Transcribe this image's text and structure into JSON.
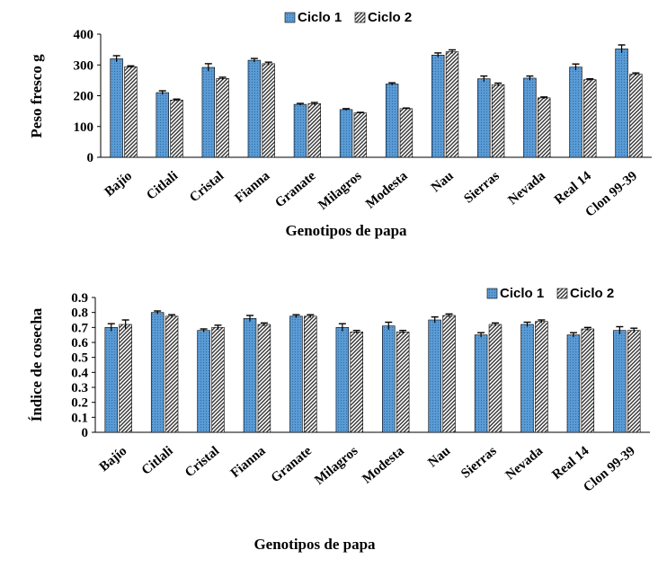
{
  "chart_data": [
    {
      "type": "bar",
      "categories": [
        "Bajío",
        "Citlali",
        "Cristal",
        "Fianna",
        "Granate",
        "Milagros",
        "Modesta",
        "Nau",
        "Sierras",
        "Nevada",
        "Real 14",
        "Clon 99-39"
      ],
      "series": [
        {
          "name": "Ciclo 1",
          "color": "#5b9bd5",
          "pattern": "dots",
          "values": [
            320,
            210,
            292,
            315,
            172,
            155,
            238,
            332,
            255,
            257,
            293,
            352
          ],
          "errors": [
            10,
            6,
            12,
            6,
            3,
            3,
            4,
            7,
            9,
            7,
            10,
            13
          ]
        },
        {
          "name": "Ciclo 2",
          "color": "#ffffff",
          "pattern": "diagonal",
          "values": [
            294,
            186,
            256,
            304,
            174,
            144,
            158,
            343,
            236,
            193,
            252,
            270
          ],
          "errors": [
            3,
            3,
            4,
            5,
            4,
            2,
            2,
            6,
            5,
            3,
            3,
            4
          ]
        }
      ],
      "title": "",
      "xlabel": "Genotipos de papa",
      "ylabel": "Peso fresco g",
      "ylim": [
        0,
        400
      ],
      "yticks": [
        "0",
        "100",
        "200",
        "300",
        "400"
      ],
      "legend": "top-center",
      "grid": false
    },
    {
      "type": "bar",
      "categories": [
        "Bajío",
        "Citlali",
        "Cristal",
        "Fianna",
        "Granate",
        "Milagros",
        "Modesta",
        "Nau",
        "Sierras",
        "Nevada",
        "Real 14",
        "Clon 99-39"
      ],
      "series": [
        {
          "name": "Ciclo 1",
          "color": "#5b9bd5",
          "pattern": "dots",
          "values": [
            0.7,
            0.8,
            0.68,
            0.76,
            0.775,
            0.7,
            0.71,
            0.75,
            0.65,
            0.72,
            0.65,
            0.68
          ],
          "errors": [
            0.025,
            0.01,
            0.01,
            0.02,
            0.01,
            0.025,
            0.025,
            0.02,
            0.015,
            0.015,
            0.015,
            0.025
          ]
        },
        {
          "name": "Ciclo 2",
          "color": "#ffffff",
          "pattern": "diagonal",
          "values": [
            0.72,
            0.775,
            0.7,
            0.72,
            0.775,
            0.67,
            0.67,
            0.78,
            0.72,
            0.74,
            0.69,
            0.68
          ],
          "errors": [
            0.03,
            0.01,
            0.015,
            0.01,
            0.01,
            0.01,
            0.01,
            0.01,
            0.01,
            0.01,
            0.01,
            0.015
          ]
        }
      ],
      "title": "",
      "xlabel": "Genotipos de papa",
      "ylabel": "Índice de cosecha",
      "ylim": [
        0,
        0.9
      ],
      "yticks": [
        "0",
        "0.1",
        "0.2",
        "0.3",
        "0.4",
        "0.5",
        "0.6",
        "0.7",
        "0.8",
        "0.9"
      ],
      "legend": "top-right",
      "grid": false
    }
  ]
}
